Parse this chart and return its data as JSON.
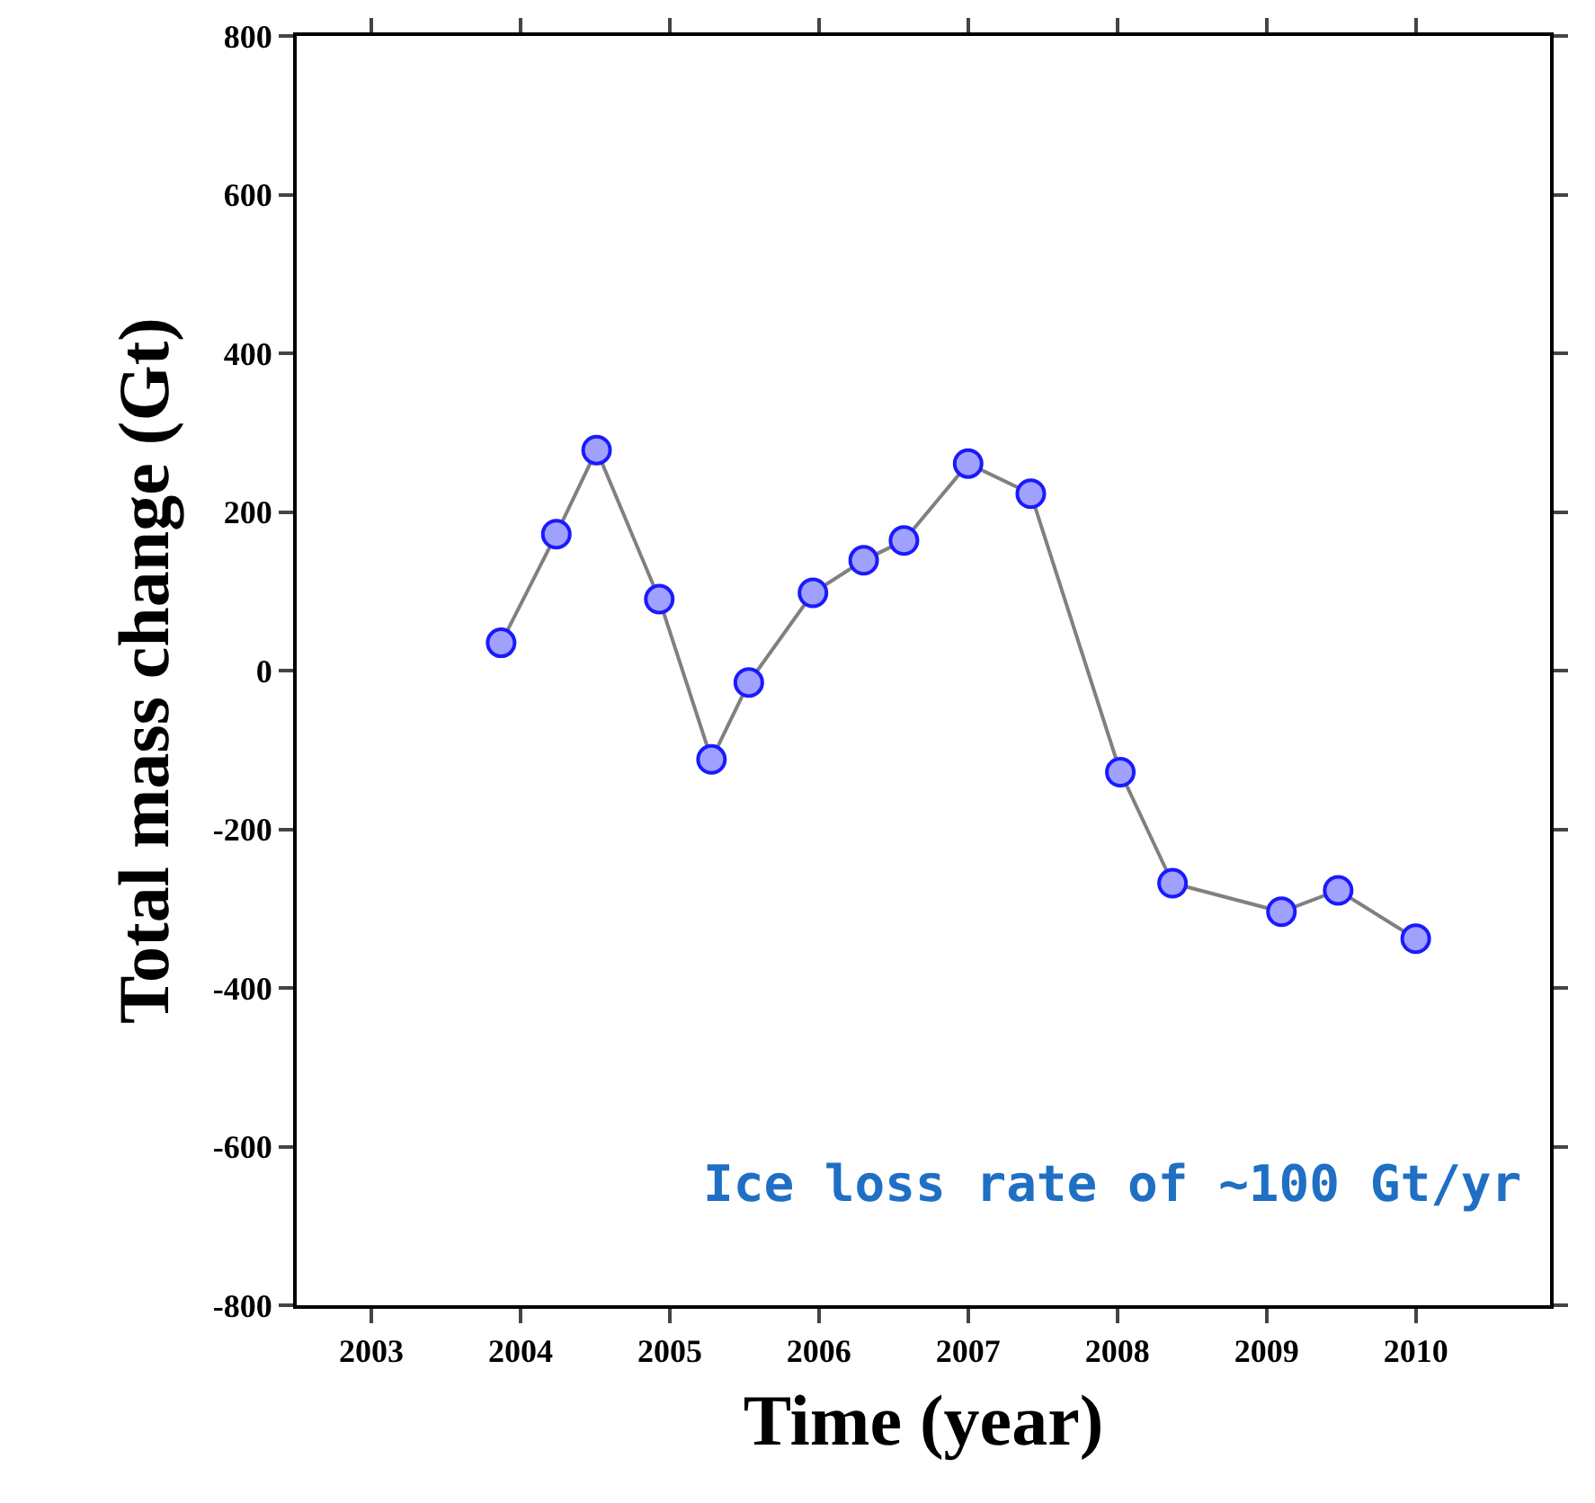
{
  "chart_data": {
    "type": "line",
    "xlabel": "Time (year)",
    "ylabel": "Total mass change (Gt)",
    "x": [
      2003.87,
      2004.24,
      2004.51,
      2004.93,
      2005.28,
      2005.53,
      2005.96,
      2006.3,
      2006.57,
      2007.0,
      2007.42,
      2008.02,
      2008.37,
      2009.1,
      2009.48,
      2010.0
    ],
    "series": [
      {
        "color": "#808080",
        "values": [
          35,
          172,
          278,
          90,
          -112,
          -15,
          98,
          139,
          164,
          261,
          223,
          -128,
          -268,
          -304,
          -277,
          -338
        ]
      }
    ],
    "marker": "circle",
    "line_style": "solid",
    "grid": false,
    "xlim": [
      2002.5,
      2010.9
    ],
    "xticks": [
      2003,
      2004,
      2005,
      2006,
      2007,
      2008,
      2009,
      2010
    ],
    "ylim": [
      -800,
      800
    ],
    "yticks": [
      -800,
      -600,
      -400,
      -200,
      0,
      200,
      400,
      600,
      800
    ],
    "annotations": [
      "Ice loss rate of ~100 Gt/yr"
    ]
  }
}
